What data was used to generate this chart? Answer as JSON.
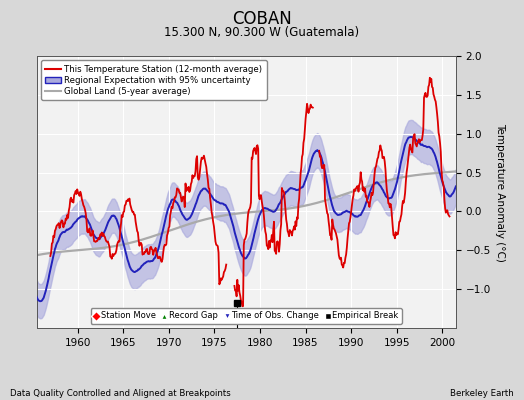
{
  "title": "COBAN",
  "subtitle": "15.300 N, 90.300 W (Guatemala)",
  "ylabel": "Temperature Anomaly (°C)",
  "xlabel_left": "Data Quality Controlled and Aligned at Breakpoints",
  "xlabel_right": "Berkeley Earth",
  "xlim": [
    1955.5,
    2001.5
  ],
  "ylim": [
    -1.5,
    2.0
  ],
  "yticks": [
    -1.0,
    -0.5,
    0,
    0.5,
    1.0,
    1.5,
    2.0
  ],
  "xticks": [
    1960,
    1965,
    1970,
    1975,
    1980,
    1985,
    1990,
    1995,
    2000
  ],
  "bg_color": "#d8d8d8",
  "plot_bg_color": "#f2f2f2",
  "grid_color": "#ffffff",
  "station_color": "#dd0000",
  "regional_color": "#2222bb",
  "regional_fill_color": "#aaaadd",
  "global_color": "#aaaaaa",
  "empirical_break_x": 1977.5,
  "empirical_break_y": -1.18,
  "legend1_labels": [
    "This Temperature Station (12-month average)",
    "Regional Expectation with 95% uncertainty",
    "Global Land (5-year average)"
  ],
  "legend2_labels": [
    "Station Move",
    "Record Gap",
    "Time of Obs. Change",
    "Empirical Break"
  ]
}
